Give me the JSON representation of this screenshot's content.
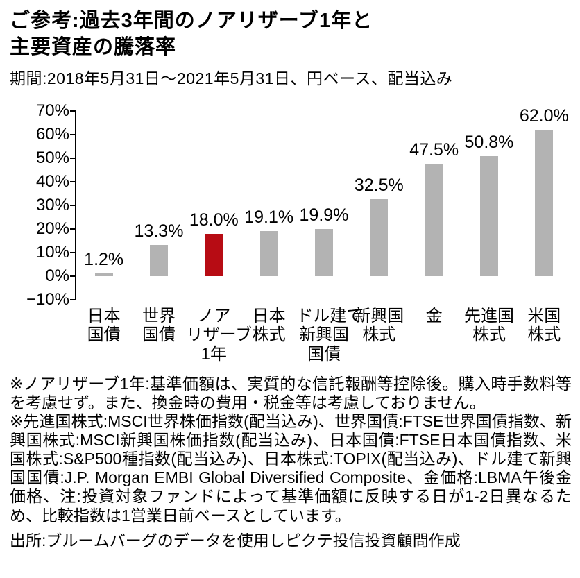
{
  "header": {
    "title_line1": "ご参考:過去3年間のノアリザーブ1年と",
    "title_line2": "主要資産の騰落率",
    "subtitle": "期間:2018年5月31日〜2021年5月31日、円ベース、配当込み"
  },
  "chart_data": {
    "type": "bar",
    "title": "過去3年間のノアリザーブ1年と主要資産の騰落率",
    "categories": [
      "日本\n国債",
      "世界\n国債",
      "ノア\nリザーブ\n1年",
      "日本\n株式",
      "ドル建て\n新興国\n国債",
      "新興国\n株式",
      "金",
      "先進国\n株式",
      "米国\n株式"
    ],
    "values": [
      1.2,
      13.3,
      18.0,
      19.1,
      19.9,
      32.5,
      47.5,
      50.8,
      62.0
    ],
    "value_labels": [
      "1.2%",
      "13.3%",
      "18.0%",
      "19.1%",
      "19.9%",
      "32.5%",
      "47.5%",
      "50.8%",
      "62.0%"
    ],
    "highlight_index": 2,
    "highlight_series": "ノアリザーブ1年",
    "bar_color": "#b3b3b3",
    "highlight_color": "#b70c14",
    "ylim": [
      -10,
      70
    ],
    "ytick_labels": [
      "70%",
      "60%",
      "50%",
      "40%",
      "30%",
      "20%",
      "10%",
      "0%",
      "−10%"
    ],
    "ylabel": "",
    "xlabel": "",
    "unit": "%",
    "grid": false,
    "legend": "none"
  },
  "footnotes": {
    "note1": "※ノアリザーブ1年:基準価額は、実質的な信託報酬等控除後。購入時手数料等を考慮せず。また、換金時の費用・税金等は考慮しておりません。",
    "note2": "※先進国株式:MSCI世界株価指数(配当込み)、世界国債:FTSE世界国債指数、新興国株式:MSCI新興国株価指数(配当込み)、日本国債:FTSE日本国債指数、米国株式:S&P500種指数(配当込み)、日本株式:TOPIX(配当込み)、ドル建て新興国国債:J.P. Morgan EMBI Global Diversified Composite、金価格:LBMA午後金価格、注:投資対象ファンドによって基準価額に反映する日が1-2日異なるため、比較指数は1営業日前ベースとしています。",
    "source": "出所:ブルームバーグのデータを使用しピクテ投信投資顧問作成"
  }
}
